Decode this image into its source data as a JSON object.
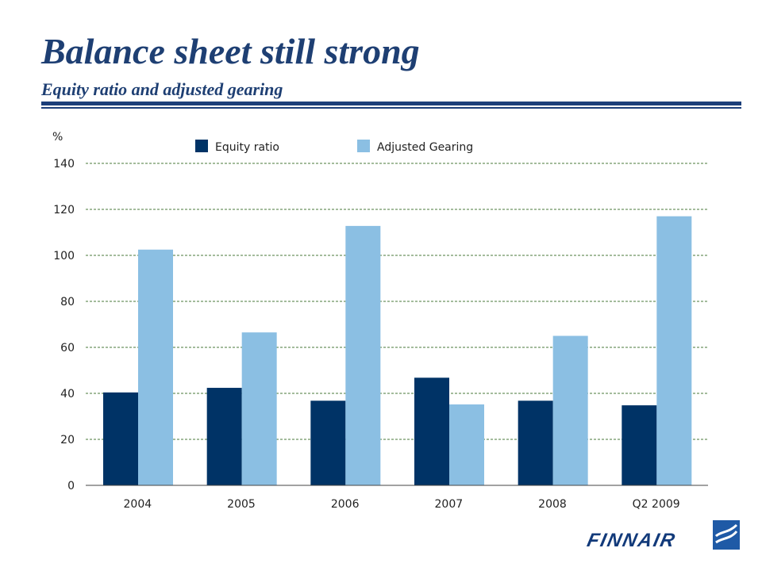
{
  "slide": {
    "title": "Balance sheet still strong",
    "subtitle": "Equity ratio and adjusted gearing",
    "logo_text": "FINNAIR"
  },
  "colors": {
    "title": "#1e3f73",
    "rule": "#1b3e7a",
    "equity": "#003366",
    "gearing": "#8bbfe3",
    "grid": "#4a7a3a"
  },
  "chart_data": {
    "type": "bar",
    "y_unit_label": "%",
    "categories": [
      "2004",
      "2005",
      "2006",
      "2007",
      "2008",
      "Q2 2009"
    ],
    "series": [
      {
        "name": "Equity ratio",
        "color": "#003366",
        "values": [
          40.4,
          42.4,
          36.8,
          46.8,
          36.8,
          34.8
        ]
      },
      {
        "name": "Adjusted Gearing",
        "color": "#8bbfe3",
        "values": [
          102.5,
          66.5,
          112.8,
          35.2,
          65.0,
          117.0
        ]
      }
    ],
    "ylim": [
      0,
      140
    ],
    "yticks": [
      0,
      20,
      40,
      60,
      80,
      100,
      120,
      140
    ],
    "grid": true,
    "legend_position": "top"
  }
}
